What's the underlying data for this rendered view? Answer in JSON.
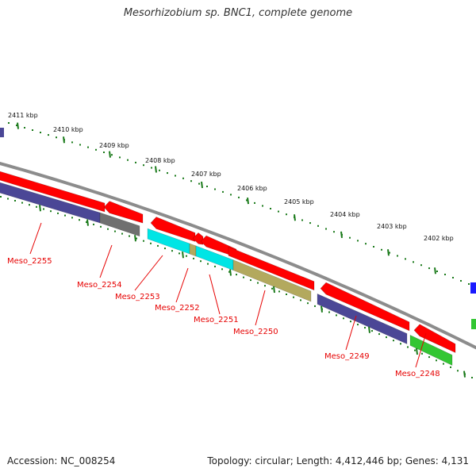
{
  "title": "Mesorhizobium sp. BNC1, complete genome",
  "footer": {
    "accession": "Accession: NC_008254",
    "summary": "Topology: circular; Length: 4,412,446 bp; Genes: 4,131"
  },
  "ruler": {
    "labels": [
      "2411 kbp",
      "2410 kbp",
      "2409 kbp",
      "2408 kbp",
      "2407 kbp",
      "2406 kbp",
      "2405 kbp",
      "2404 kbp",
      "2403 kbp",
      "2402 kbp"
    ]
  },
  "genes": [
    {
      "label": "Meso_2255",
      "strand": "reverse",
      "color": "#ff0000"
    },
    {
      "label": "Meso_2254",
      "strand": "reverse",
      "color": "#ff0000"
    },
    {
      "label": "Meso_2253",
      "strand": "reverse",
      "color": "#ff0000"
    },
    {
      "label": "Meso_2252",
      "strand": "reverse",
      "color": "#ff0000"
    },
    {
      "label": "Meso_2251",
      "strand": "reverse",
      "color": "#ff0000"
    },
    {
      "label": "Meso_2250",
      "strand": "reverse",
      "color": "#ff0000"
    },
    {
      "label": "Meso_2249",
      "strand": "reverse",
      "color": "#ff0000"
    },
    {
      "label": "Meso_2248",
      "strand": "reverse",
      "color": "#ff0000"
    }
  ],
  "colors": {
    "cds": "#ff0000",
    "backbone": "#8c8c8c",
    "ruler": "#1a7a1a",
    "label": "#e60000",
    "cog_purple": "#4b4796",
    "cog_gray": "#707070",
    "cog_cyan": "#00e5e5",
    "cog_olive": "#b3a95e",
    "cog_green": "#33c633",
    "cog_blue": "#1a1aff"
  }
}
